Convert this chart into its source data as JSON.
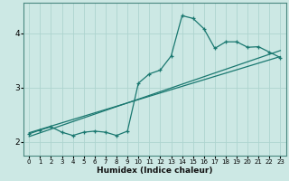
{
  "xlabel": "Humidex (Indice chaleur)",
  "bg_color": "#cce8e4",
  "grid_color": "#aed4cf",
  "line_color": "#1a7870",
  "xlim": [
    -0.5,
    23.5
  ],
  "ylim": [
    1.75,
    4.55
  ],
  "yticks": [
    2,
    3,
    4
  ],
  "xticks": [
    0,
    1,
    2,
    3,
    4,
    5,
    6,
    7,
    8,
    9,
    10,
    11,
    12,
    13,
    14,
    15,
    16,
    17,
    18,
    19,
    20,
    21,
    22,
    23
  ],
  "line1_x": [
    0,
    23
  ],
  "line1_y": [
    2.1,
    3.68
  ],
  "line2_x": [
    0,
    23
  ],
  "line2_y": [
    2.17,
    3.57
  ],
  "jagged_x": [
    0,
    1,
    2,
    3,
    4,
    5,
    6,
    7,
    8,
    9,
    10,
    11,
    12,
    13,
    14,
    15,
    16,
    17,
    18,
    19,
    20,
    21,
    22,
    23
  ],
  "jagged_y": [
    2.15,
    2.22,
    2.28,
    2.18,
    2.12,
    2.18,
    2.2,
    2.18,
    2.12,
    2.2,
    3.08,
    3.25,
    3.32,
    3.58,
    4.32,
    4.27,
    4.08,
    3.72,
    3.84,
    3.84,
    3.74,
    3.75,
    3.65,
    3.55
  ]
}
